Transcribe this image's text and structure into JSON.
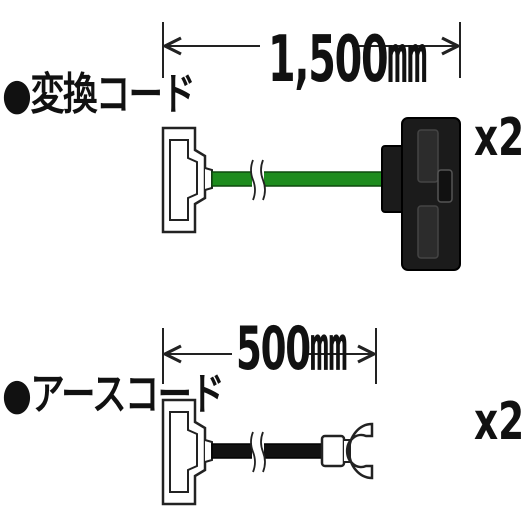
{
  "cord1": {
    "title": "●変換コード",
    "length": "1,500㎜",
    "quantity": "x2",
    "wire_color": "#1e8c1e"
  },
  "cord2": {
    "title": "●アースコード",
    "length": "500㎜",
    "quantity": "x2",
    "wire_color": "#111111"
  }
}
